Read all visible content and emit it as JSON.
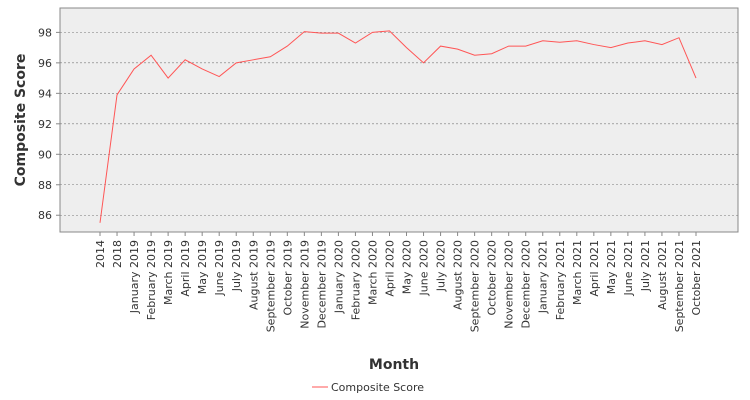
{
  "chart_data": {
    "type": "line",
    "x_label": "Month",
    "y_label": "Composite Score",
    "categories": [
      "2014",
      "2018",
      "January 2019",
      "February 2019",
      "March 2019",
      "April 2019",
      "May 2019",
      "June 2019",
      "July 2019",
      "August 2019",
      "September 2019",
      "October 2019",
      "November 2019",
      "December 2019",
      "January 2020",
      "February 2020",
      "March 2020",
      "April 2020",
      "May 2020",
      "June 2020",
      "July 2020",
      "August 2020",
      "September 2020",
      "October 2020",
      "November 2020",
      "December 2020",
      "January 2021",
      "February 2021",
      "March 2021",
      "April 2021",
      "May 2021",
      "June 2021",
      "July 2021",
      "August 2021",
      "September 2021",
      "October 2021"
    ],
    "series": [
      {
        "name": "Composite Score",
        "color": "#ff5555",
        "values": [
          85.5,
          93.9,
          95.6,
          96.5,
          95.0,
          96.2,
          95.6,
          95.1,
          96.0,
          96.2,
          96.4,
          97.1,
          98.05,
          97.95,
          97.95,
          97.3,
          98.0,
          98.1,
          97.0,
          96.0,
          97.1,
          96.9,
          96.5,
          96.6,
          97.1,
          97.1,
          97.45,
          97.35,
          97.45,
          97.2,
          97.0,
          97.3,
          97.45,
          97.2,
          97.65,
          95.0
        ]
      }
    ],
    "ylim": [
      84.9,
      99.6
    ],
    "yticks": [
      86,
      88,
      90,
      92,
      94,
      96,
      98
    ],
    "grid": true,
    "legend": "bottom"
  }
}
